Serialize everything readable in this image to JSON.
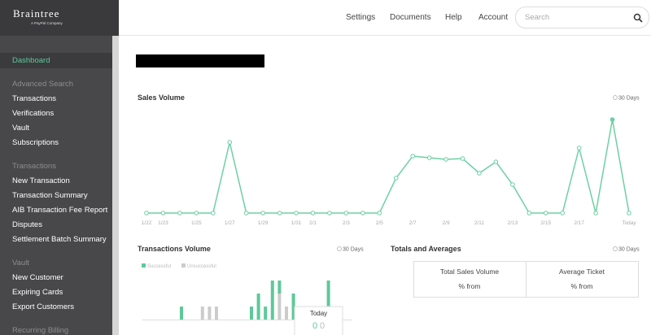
{
  "sidebar": {
    "logo": "Braintree",
    "logo_tagline": "A PayPal Company",
    "dashboard": "Dashboard",
    "sections": [
      {
        "heading": "Advanced Search",
        "items": [
          "Transactions",
          "Verifications",
          "Vault",
          "Subscriptions"
        ]
      },
      {
        "heading": "Transactions",
        "items": [
          "New Transaction",
          "Transaction Summary",
          "AIB Transaction Fee Report",
          "Disputes",
          "Settlement Batch Summary"
        ]
      },
      {
        "heading": "Vault",
        "items": [
          "New Customer",
          "Expiring Cards",
          "Export Customers"
        ]
      },
      {
        "heading": "Recurring Billing",
        "items": []
      }
    ]
  },
  "nav": {
    "links": [
      "Settings",
      "Documents",
      "Help",
      "Account"
    ],
    "search_placeholder": "Search"
  },
  "sales_volume": {
    "title": "Sales Volume",
    "period": "30 Days",
    "color": "#6dd0a3",
    "x_labels": [
      "1/22",
      "1/23",
      null,
      "1/25",
      null,
      "1/27",
      null,
      "1/29",
      null,
      "1/31",
      "2/1",
      null,
      "2/3",
      null,
      "2/5",
      null,
      "2/7",
      null,
      "2/9",
      null,
      "2/11",
      null,
      "2/13",
      null,
      "2/15",
      null,
      "2/17",
      null,
      null,
      "Today"
    ],
    "values": [
      0,
      0,
      0,
      0,
      0,
      87,
      0,
      0,
      0,
      0,
      0,
      0,
      0,
      0,
      0,
      43,
      70,
      68,
      66,
      67,
      49,
      63,
      35,
      0,
      0,
      0,
      80,
      0,
      115,
      0
    ]
  },
  "transactions_volume": {
    "title": "Transactions Volume",
    "period": "30 Days",
    "legend": [
      "Successful",
      "Unsuccessful"
    ],
    "colors": [
      "#5dc99a",
      "#cccccc"
    ],
    "successful": [
      0,
      0,
      0,
      0,
      0,
      1,
      0,
      0,
      0,
      0,
      0,
      0,
      0,
      0,
      0,
      1,
      2,
      1,
      3,
      1,
      0,
      2,
      0,
      0,
      0,
      0,
      3,
      0,
      0,
      0
    ],
    "unsuccessful": [
      0,
      0,
      0,
      0,
      0,
      0,
      0,
      0,
      1,
      1,
      1,
      0,
      0,
      0,
      0,
      0,
      0,
      0,
      0,
      2,
      1,
      0,
      0,
      0,
      0,
      0,
      0,
      0,
      0,
      0
    ],
    "tooltip": {
      "title": "Today",
      "successful": 0,
      "unsuccessful": 0
    }
  },
  "totals": {
    "title": "Totals and Averages",
    "period": "30 Days",
    "cells": [
      {
        "label": "Total Sales Volume",
        "sub": "% from"
      },
      {
        "label": "Average Ticket",
        "sub": "% from"
      }
    ]
  }
}
